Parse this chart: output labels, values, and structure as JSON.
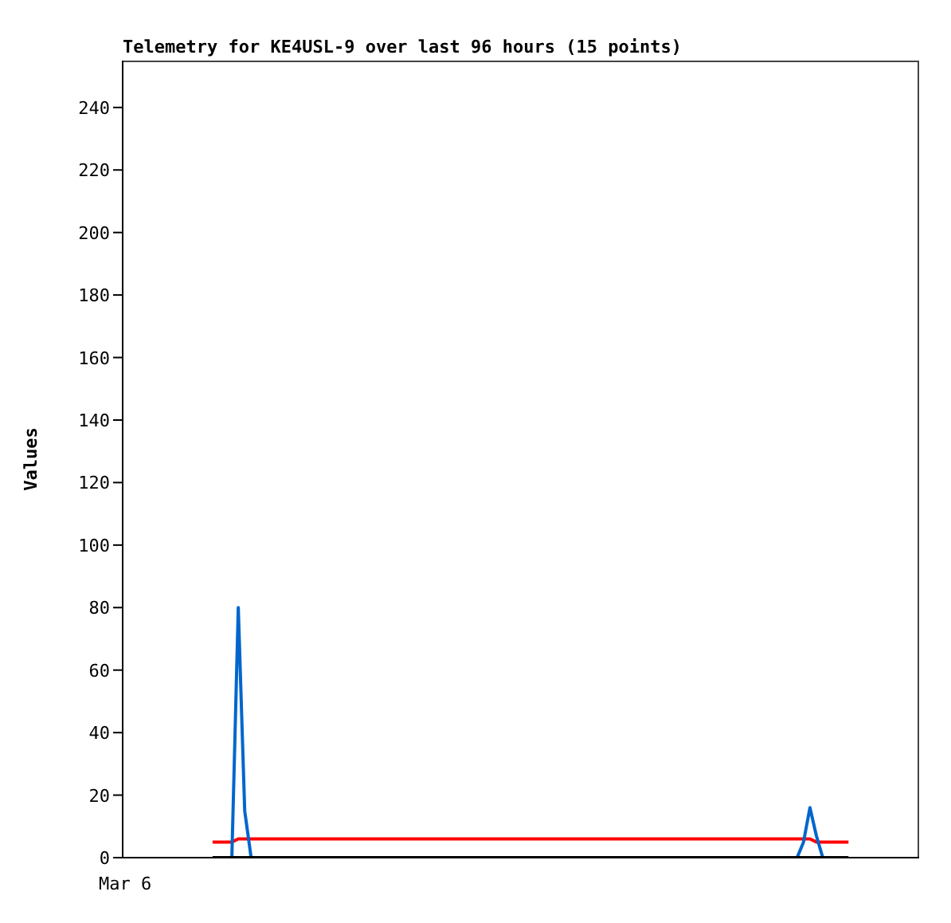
{
  "chart_data": {
    "type": "line",
    "title": "Telemetry for KE4USL-9 over last 96 hours (15 points)",
    "ylabel": "Values",
    "annotations": [
      "Mar 6"
    ],
    "categories": [
      null,
      null,
      null,
      null,
      null,
      null,
      null,
      null,
      null,
      null,
      null,
      null,
      null,
      null,
      null,
      null,
      null,
      null,
      null,
      null,
      null,
      null,
      null,
      null,
      null,
      null,
      null,
      null,
      null,
      null,
      null,
      null,
      null,
      null,
      null,
      null,
      null,
      null,
      null,
      null,
      null,
      null,
      null,
      null,
      null,
      null,
      null,
      null,
      null,
      null,
      null,
      null,
      null,
      null,
      null,
      null,
      null,
      null,
      null,
      null,
      null,
      null,
      null,
      null,
      null,
      null,
      null,
      null,
      null,
      null,
      null,
      null,
      null,
      null,
      null,
      null,
      null,
      null,
      null,
      null,
      null,
      null,
      null,
      null,
      null,
      null,
      null,
      null,
      null,
      null,
      null,
      null,
      null,
      null,
      null,
      null,
      null,
      null,
      null,
      null,
      null,
      null,
      null,
      null,
      null,
      null,
      null,
      null,
      null,
      null,
      null,
      null,
      null,
      null,
      null,
      null,
      null,
      null,
      null,
      null,
      null,
      null,
      null,
      null,
      null
    ],
    "ylim": [
      0,
      255
    ],
    "yticks": [
      0,
      20,
      40,
      60,
      80,
      100,
      120,
      140,
      160,
      180,
      200,
      220,
      240
    ],
    "grid": false,
    "legend": false,
    "marker": "none",
    "line_style": "solid",
    "series": [
      {
        "color": "#ff0000",
        "values": [
          null,
          null,
          null,
          null,
          null,
          null,
          null,
          null,
          null,
          null,
          null,
          null,
          null,
          null,
          5,
          5,
          5,
          5,
          6,
          6,
          6,
          6,
          6,
          6,
          6,
          6,
          6,
          6,
          6,
          6,
          6,
          6,
          6,
          6,
          6,
          6,
          6,
          6,
          6,
          6,
          6,
          6,
          6,
          6,
          6,
          6,
          6,
          6,
          6,
          6,
          6,
          6,
          6,
          6,
          6,
          6,
          6,
          6,
          6,
          6,
          6,
          6,
          6,
          6,
          6,
          6,
          6,
          6,
          6,
          6,
          6,
          6,
          6,
          6,
          6,
          6,
          6,
          6,
          6,
          6,
          6,
          6,
          6,
          6,
          6,
          6,
          6,
          6,
          6,
          6,
          6,
          6,
          6,
          6,
          6,
          6,
          6,
          6,
          6,
          6,
          6,
          6,
          6,
          6,
          6,
          6,
          6,
          6,
          5,
          5,
          5,
          5,
          5,
          5,
          null,
          null,
          null,
          null,
          null,
          null,
          null,
          null,
          null,
          null,
          null
        ]
      },
      {
        "color": "#0066cc",
        "values": [
          null,
          null,
          null,
          null,
          null,
          null,
          null,
          null,
          null,
          null,
          null,
          null,
          null,
          null,
          null,
          null,
          null,
          0,
          80,
          15,
          0,
          null,
          null,
          null,
          null,
          null,
          null,
          null,
          null,
          null,
          null,
          null,
          null,
          null,
          null,
          null,
          null,
          null,
          null,
          null,
          null,
          null,
          null,
          null,
          null,
          null,
          null,
          null,
          null,
          null,
          null,
          null,
          null,
          null,
          null,
          null,
          null,
          null,
          null,
          null,
          null,
          null,
          null,
          null,
          null,
          null,
          null,
          null,
          null,
          null,
          null,
          null,
          null,
          null,
          null,
          null,
          null,
          null,
          null,
          null,
          null,
          null,
          null,
          null,
          null,
          null,
          null,
          null,
          null,
          null,
          null,
          null,
          null,
          null,
          null,
          null,
          null,
          null,
          null,
          null,
          null,
          null,
          null,
          null,
          null,
          0,
          5,
          16,
          7,
          0,
          null,
          null,
          null,
          null,
          null,
          null,
          null,
          null,
          null,
          null,
          null,
          null,
          null,
          null,
          null
        ]
      },
      {
        "color": "#000000",
        "values": [
          null,
          null,
          null,
          null,
          null,
          null,
          null,
          null,
          null,
          null,
          null,
          null,
          null,
          null,
          0,
          0,
          0,
          0,
          0,
          0,
          0,
          0,
          0,
          0,
          0,
          0,
          0,
          0,
          0,
          0,
          0,
          0,
          0,
          0,
          0,
          0,
          0,
          0,
          0,
          0,
          0,
          0,
          0,
          0,
          0,
          0,
          0,
          0,
          0,
          0,
          0,
          0,
          0,
          0,
          0,
          0,
          0,
          0,
          0,
          0,
          0,
          0,
          0,
          0,
          0,
          0,
          0,
          0,
          0,
          0,
          0,
          0,
          0,
          0,
          0,
          0,
          0,
          0,
          0,
          0,
          0,
          0,
          0,
          0,
          0,
          0,
          0,
          0,
          0,
          0,
          0,
          0,
          0,
          0,
          0,
          0,
          0,
          0,
          0,
          0,
          0,
          0,
          0,
          0,
          0,
          0,
          0,
          0,
          0,
          0,
          0,
          0,
          0,
          0,
          null,
          null,
          null,
          null,
          null,
          null,
          null,
          null,
          null,
          null,
          null
        ]
      }
    ]
  }
}
